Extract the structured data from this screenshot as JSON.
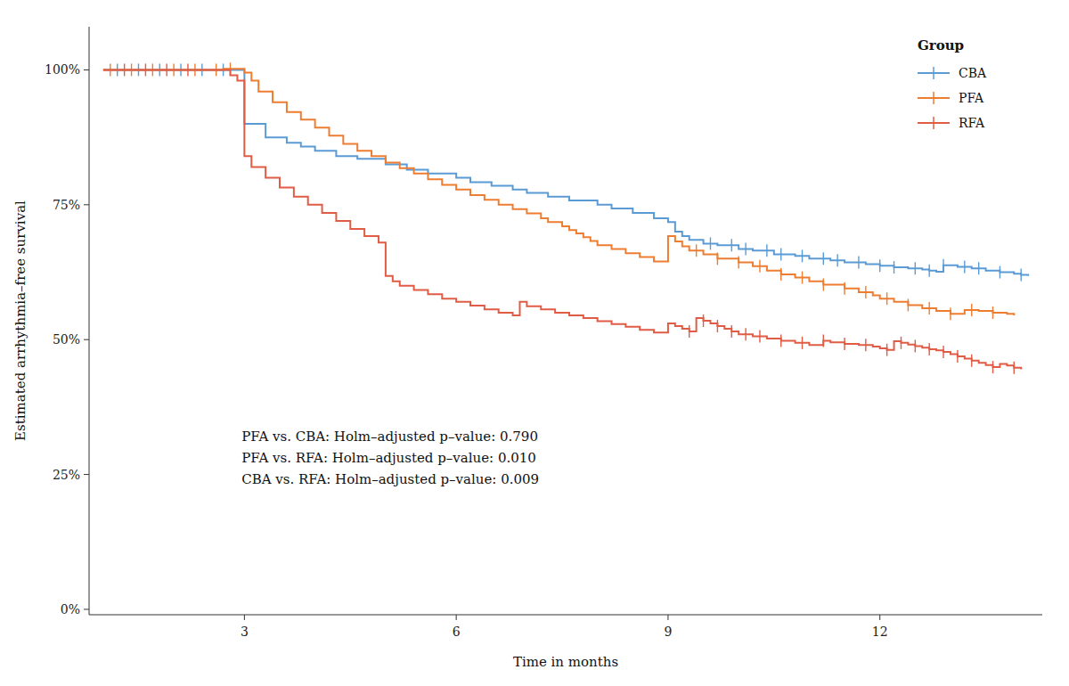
{
  "chart_data": {
    "type": "step",
    "xlabel": "Time in months",
    "ylabel": "Estimated arrhythmia–free survival",
    "annotations": [
      "PFA vs. CBA: Holm–adjusted p–value: 0.790",
      "PFA vs. RFA: Holm–adjusted p–value: 0.010",
      "CBA vs. RFA: Holm–adjusted p–value: 0.009"
    ],
    "legend_title": "Group",
    "legend": "upper right",
    "grid": false,
    "xlim": [
      0.8,
      14.3
    ],
    "ylim": [
      -0.01,
      1.08
    ],
    "xticks": [
      3,
      6,
      9,
      12
    ],
    "yticks": [
      {
        "value": 0.0,
        "label": "0%"
      },
      {
        "value": 0.25,
        "label": "25%"
      },
      {
        "value": 0.5,
        "label": "50%"
      },
      {
        "value": 0.75,
        "label": "75%"
      },
      {
        "value": 1.0,
        "label": "100%"
      }
    ],
    "series": [
      {
        "name": "CBA",
        "color": "#5B9BD5",
        "x": [
          1.0,
          2.9,
          3.0,
          3.3,
          3.6,
          3.8,
          4.0,
          4.3,
          4.6,
          5.0,
          5.3,
          5.6,
          6.0,
          6.2,
          6.5,
          6.8,
          7.0,
          7.3,
          7.6,
          8.0,
          8.2,
          8.5,
          8.8,
          9.0,
          9.1,
          9.2,
          9.3,
          9.5,
          9.7,
          10.0,
          10.2,
          10.5,
          10.8,
          11.0,
          11.3,
          11.5,
          11.8,
          12.0,
          12.2,
          12.4,
          12.6,
          12.7,
          12.8,
          12.9,
          13.0,
          13.1,
          13.3,
          13.5,
          13.7,
          13.9,
          14.0,
          14.1
        ],
        "values": [
          1.0,
          1.0,
          0.9,
          0.875,
          0.865,
          0.858,
          0.85,
          0.84,
          0.835,
          0.825,
          0.815,
          0.808,
          0.8,
          0.792,
          0.785,
          0.778,
          0.772,
          0.765,
          0.758,
          0.75,
          0.743,
          0.735,
          0.725,
          0.718,
          0.7,
          0.692,
          0.685,
          0.678,
          0.675,
          0.668,
          0.665,
          0.658,
          0.655,
          0.65,
          0.647,
          0.643,
          0.64,
          0.637,
          0.634,
          0.632,
          0.63,
          0.628,
          0.626,
          0.638,
          0.638,
          0.635,
          0.632,
          0.628,
          0.625,
          0.622,
          0.62,
          0.618
        ],
        "censors": [
          1.2,
          1.5,
          1.8,
          2.1,
          2.4,
          2.7,
          9.6,
          9.9,
          10.1,
          10.4,
          10.6,
          10.9,
          11.2,
          11.4,
          11.7,
          12.0,
          12.2,
          12.5,
          12.7,
          12.9,
          13.2,
          13.4,
          13.7,
          14.0
        ]
      },
      {
        "name": "PFA",
        "color": "#ED7D31",
        "x": [
          1.0,
          2.6,
          2.7,
          2.8,
          3.0,
          3.1,
          3.2,
          3.4,
          3.6,
          3.8,
          4.0,
          4.2,
          4.4,
          4.6,
          4.8,
          5.0,
          5.2,
          5.4,
          5.6,
          5.8,
          6.0,
          6.2,
          6.4,
          6.6,
          6.8,
          7.0,
          7.2,
          7.3,
          7.5,
          7.6,
          7.7,
          7.8,
          7.9,
          8.0,
          8.2,
          8.4,
          8.6,
          8.8,
          9.0,
          9.1,
          9.2,
          9.3,
          9.5,
          9.7,
          10.0,
          10.2,
          10.4,
          10.6,
          10.8,
          11.0,
          11.2,
          11.5,
          11.7,
          11.9,
          12.0,
          12.2,
          12.4,
          12.6,
          12.8,
          13.0,
          13.2,
          13.4,
          13.6,
          13.8,
          13.9
        ],
        "values": [
          1.0,
          1.0,
          1.002,
          1.002,
          0.995,
          0.98,
          0.96,
          0.94,
          0.922,
          0.908,
          0.893,
          0.878,
          0.863,
          0.85,
          0.84,
          0.828,
          0.818,
          0.808,
          0.797,
          0.787,
          0.778,
          0.768,
          0.759,
          0.75,
          0.742,
          0.734,
          0.725,
          0.718,
          0.71,
          0.703,
          0.697,
          0.69,
          0.683,
          0.675,
          0.668,
          0.66,
          0.653,
          0.645,
          0.692,
          0.682,
          0.673,
          0.665,
          0.658,
          0.65,
          0.643,
          0.636,
          0.628,
          0.621,
          0.615,
          0.608,
          0.602,
          0.595,
          0.588,
          0.582,
          0.576,
          0.57,
          0.564,
          0.558,
          0.553,
          0.548,
          0.555,
          0.553,
          0.55,
          0.548,
          0.545
        ],
        "censors": [
          1.1,
          1.4,
          1.7,
          2.0,
          2.3,
          2.6,
          2.8,
          9.4,
          9.7,
          10.0,
          10.3,
          10.6,
          10.9,
          11.2,
          11.5,
          11.8,
          12.1,
          12.4,
          12.7,
          13.0,
          13.3,
          13.6
        ]
      },
      {
        "name": "RFA",
        "color": "#E05C45",
        "x": [
          1.0,
          2.5,
          2.6,
          2.7,
          2.8,
          2.9,
          3.0,
          3.1,
          3.3,
          3.5,
          3.7,
          3.9,
          4.1,
          4.3,
          4.5,
          4.7,
          4.9,
          5.0,
          5.1,
          5.2,
          5.4,
          5.6,
          5.8,
          6.0,
          6.2,
          6.4,
          6.6,
          6.8,
          6.9,
          7.0,
          7.2,
          7.4,
          7.6,
          7.8,
          8.0,
          8.2,
          8.4,
          8.6,
          8.8,
          9.0,
          9.1,
          9.2,
          9.3,
          9.4,
          9.5,
          9.6,
          9.7,
          9.8,
          9.9,
          10.0,
          10.2,
          10.4,
          10.6,
          10.8,
          11.0,
          11.2,
          11.3,
          11.5,
          11.7,
          11.9,
          12.0,
          12.1,
          12.2,
          12.3,
          12.4,
          12.5,
          12.6,
          12.7,
          12.8,
          12.9,
          13.0,
          13.1,
          13.2,
          13.3,
          13.4,
          13.5,
          13.6,
          13.7,
          13.8,
          13.9,
          14.0
        ],
        "values": [
          1.0,
          1.0,
          1.0,
          1.0,
          0.99,
          0.98,
          0.84,
          0.82,
          0.8,
          0.782,
          0.765,
          0.75,
          0.735,
          0.72,
          0.705,
          0.692,
          0.68,
          0.618,
          0.608,
          0.6,
          0.592,
          0.584,
          0.576,
          0.57,
          0.563,
          0.556,
          0.55,
          0.545,
          0.57,
          0.562,
          0.556,
          0.55,
          0.545,
          0.54,
          0.534,
          0.529,
          0.524,
          0.518,
          0.513,
          0.53,
          0.525,
          0.52,
          0.515,
          0.54,
          0.535,
          0.53,
          0.525,
          0.52,
          0.515,
          0.51,
          0.506,
          0.502,
          0.498,
          0.494,
          0.49,
          0.498,
          0.495,
          0.492,
          0.49,
          0.487,
          0.484,
          0.481,
          0.497,
          0.494,
          0.491,
          0.488,
          0.485,
          0.482,
          0.48,
          0.477,
          0.473,
          0.469,
          0.465,
          0.461,
          0.457,
          0.453,
          0.449,
          0.455,
          0.452,
          0.448,
          0.445
        ],
        "censors": [
          1.3,
          1.6,
          1.9,
          2.2,
          9.3,
          9.5,
          9.7,
          9.9,
          10.1,
          10.3,
          10.6,
          10.9,
          11.2,
          11.5,
          11.8,
          12.1,
          12.3,
          12.5,
          12.7,
          12.9,
          13.1,
          13.3,
          13.6,
          13.9
        ]
      }
    ]
  }
}
